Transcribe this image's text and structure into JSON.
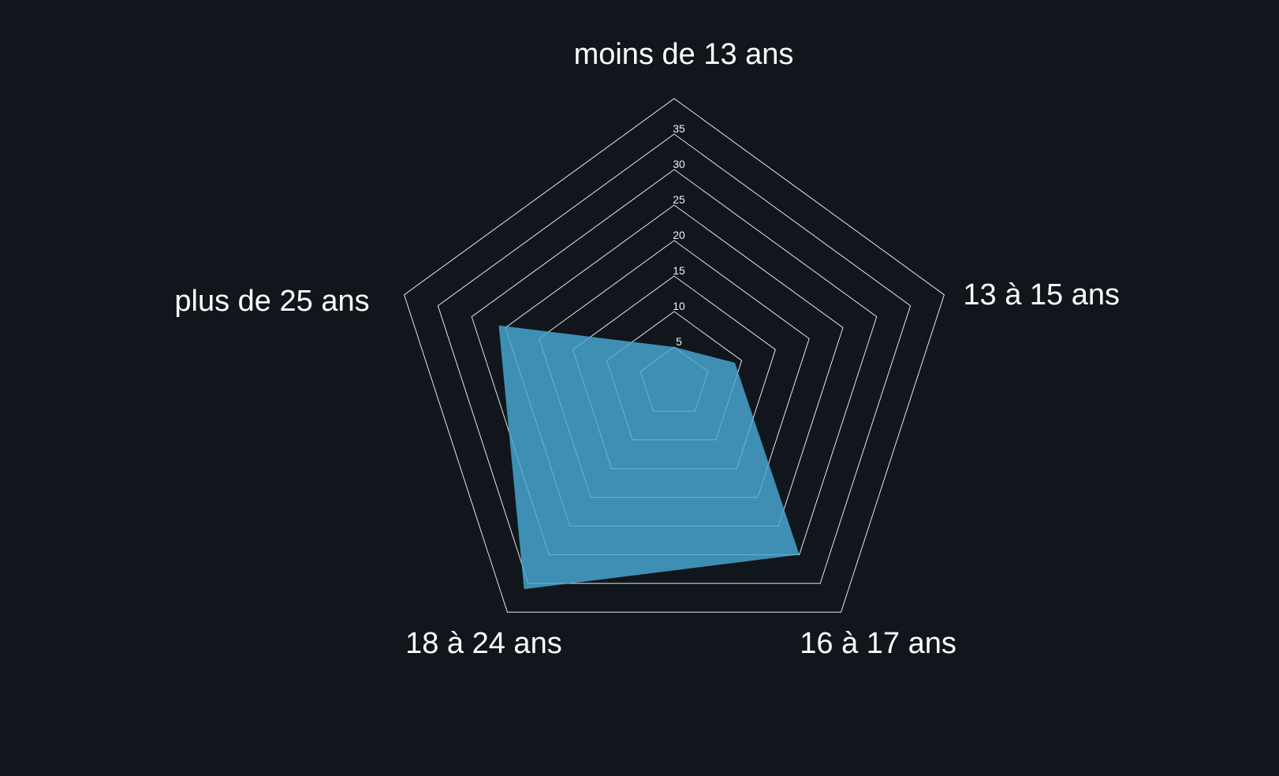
{
  "chart_data": {
    "type": "radar",
    "title": "",
    "categories": [
      "moins de 13 ans",
      "13 à 15 ans",
      "16 à 17 ans",
      "18 à 24 ans",
      "plus de 25 ans"
    ],
    "series": [
      {
        "name": "",
        "values": [
          5,
          9,
          30,
          36,
          26
        ]
      }
    ],
    "r_ticks": [
      5,
      10,
      15,
      20,
      25,
      30,
      35
    ],
    "r_max": 40,
    "grid": true,
    "legend": "none"
  },
  "colors": {
    "background": "#10161c",
    "area": "#4aa8d4",
    "grid": "#e6e6e6",
    "text": "#ffffff"
  }
}
